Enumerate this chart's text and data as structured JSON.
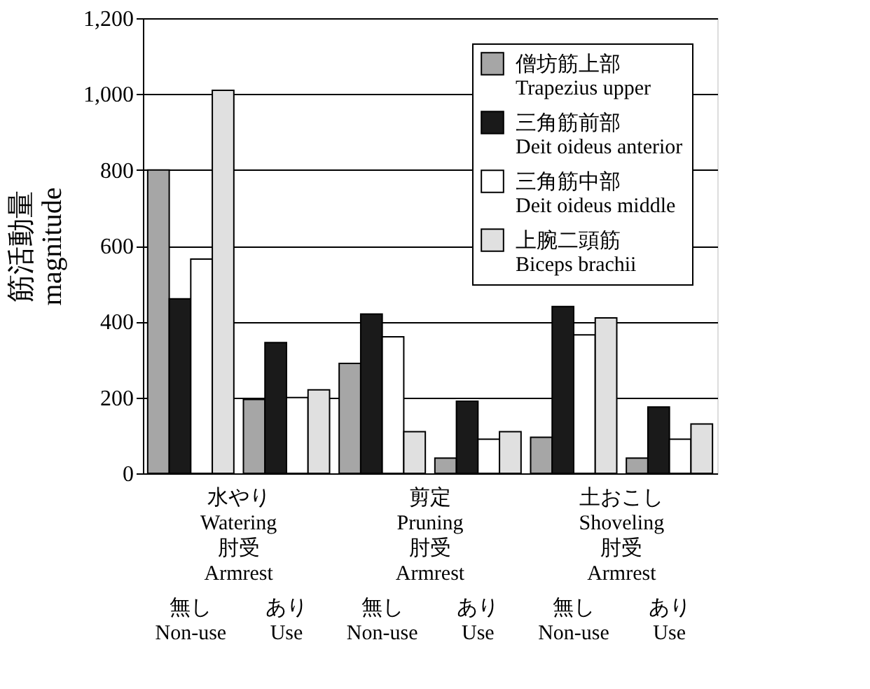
{
  "chart_data": {
    "type": "bar",
    "ylabel": "筋活動量\nmagnitude",
    "categories": [
      "無し\nNon-use",
      "あり\nUse",
      "無し\nNon-use",
      "あり\nUse",
      "無し\nNon-use",
      "あり\nUse"
    ],
    "annotations": [
      "水やり\nWatering\n肘受\nArmrest",
      "剪定\nPruning\n肘受\nArmrest",
      "土おこし\nShoveling\n肘受\nArmrest"
    ],
    "series": [
      {
        "name": "僧坊筋上部\nTrapezius upper",
        "color": "#a6a6a6",
        "values": [
          800,
          195,
          290,
          40,
          95,
          40
        ]
      },
      {
        "name": "三角筋前部\nDeit oideus anterior",
        "color": "#1a1a1a",
        "values": [
          460,
          345,
          420,
          190,
          440,
          175
        ]
      },
      {
        "name": "三角筋中部\nDeit oideus middle",
        "color": "#ffffff",
        "values": [
          565,
          200,
          360,
          90,
          365,
          90
        ]
      },
      {
        "name": "上腕二頭筋\nBiceps brachii",
        "color": "#e0e0e0",
        "values": [
          1010,
          220,
          110,
          110,
          410,
          130
        ]
      }
    ],
    "ylim": [
      0,
      1200
    ],
    "yticks": [
      0,
      200,
      400,
      600,
      800,
      {
        "value": 1000,
        "label": "1,000"
      },
      {
        "value": 1200,
        "label": "1,200"
      }
    ],
    "grid": "y",
    "legend": "top right"
  }
}
